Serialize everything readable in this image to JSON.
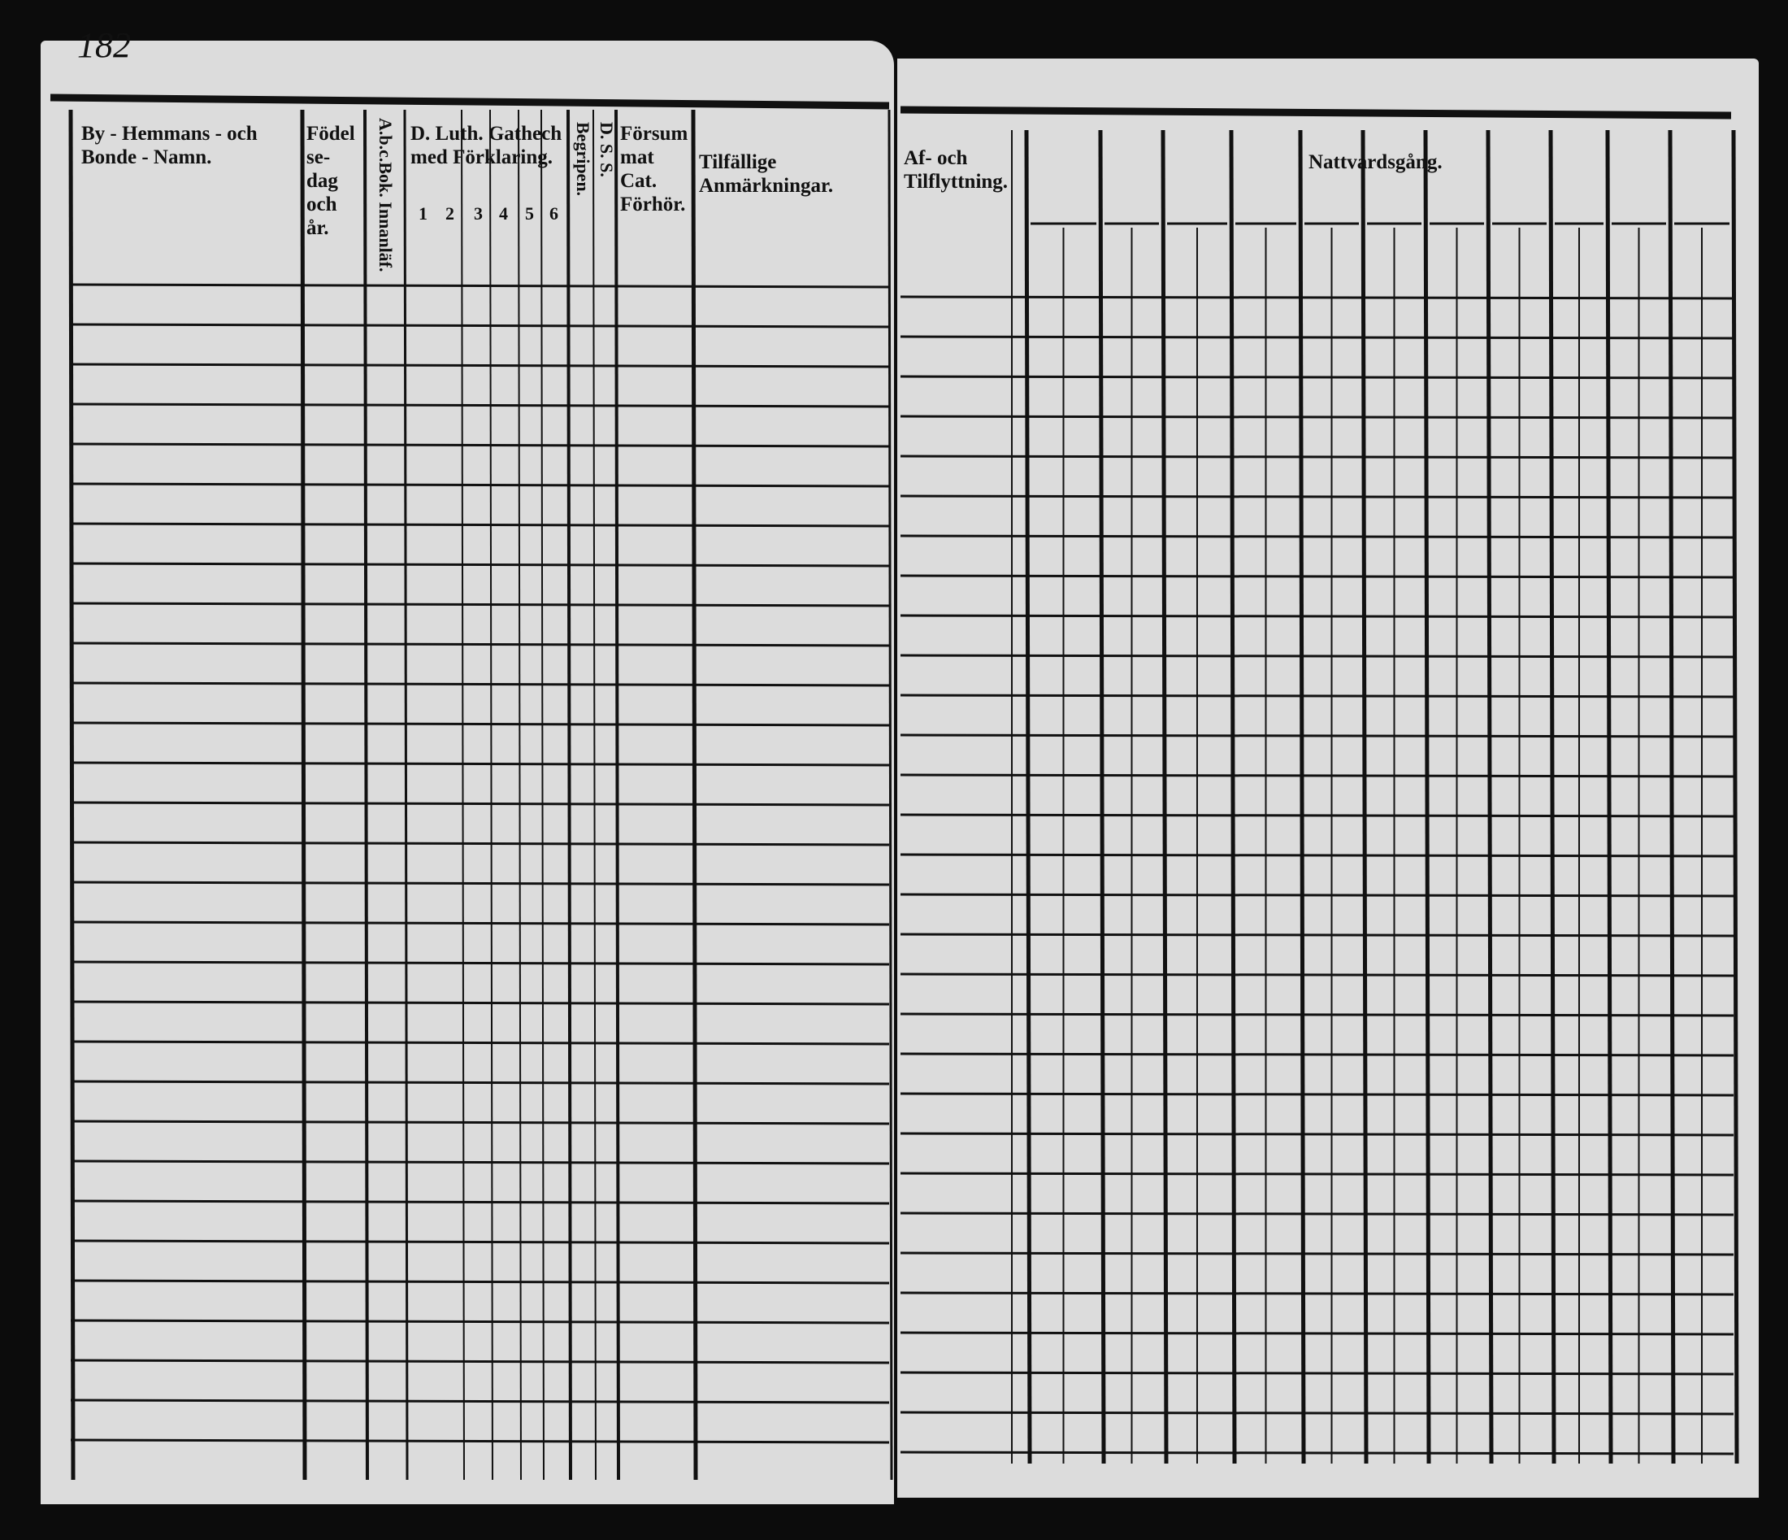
{
  "page_number": "182",
  "left_page": {
    "headers": {
      "name": "By - Hemmans - och Bonde - Namn.",
      "birth": "Födelse-dag och år.",
      "abc": "A.b.c.Bok. Innanläf.",
      "catechism": "D. Luth. Gathech med Förklaring.",
      "catechism_parts": [
        "1",
        "2",
        "3",
        "4",
        "5",
        "6"
      ],
      "begrip": "Begripen.",
      "ds": "D. S. S.",
      "forsummat": "Försummat Cat. Förhör.",
      "remarks": "Tilfällige Anmärkningar."
    }
  },
  "right_page": {
    "headers": {
      "moving": "Af- och Tilflyttning.",
      "communion": "Nattvardsgång."
    }
  },
  "colors": {
    "paper": "#dcdcdc",
    "ink": "#111111",
    "background": "#0c0c0c"
  }
}
